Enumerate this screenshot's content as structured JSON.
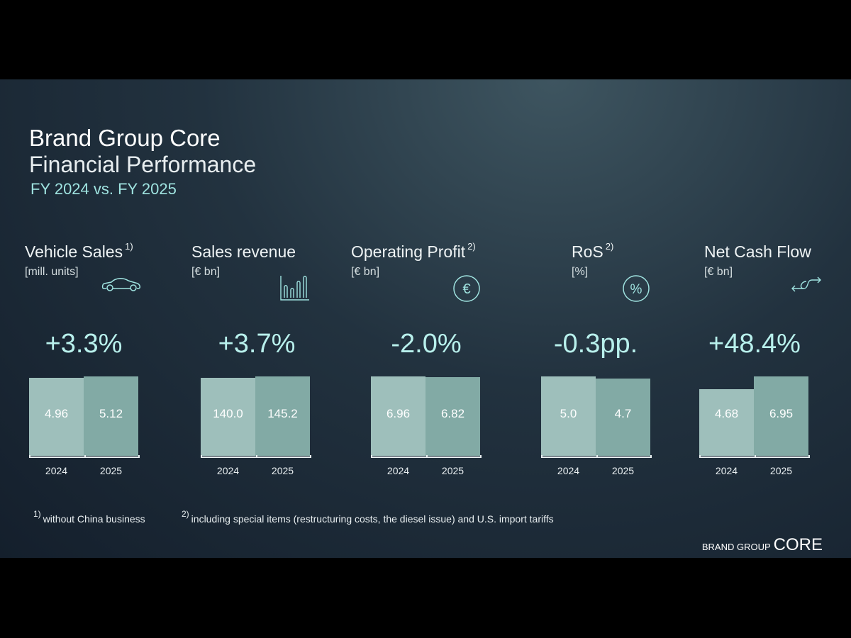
{
  "title": {
    "line1": "Brand Group Core",
    "line2": "Financial Performance",
    "line3": "FY 2024 vs. FY 2025"
  },
  "chart_data": [
    {
      "type": "bar",
      "title": "Vehicle Sales",
      "footnote": "1)",
      "unit": "[mill. units]",
      "icon": "car-icon",
      "delta": "+3.3%",
      "categories": [
        "2024",
        "2025"
      ],
      "values": [
        4.96,
        5.12
      ],
      "labels": [
        "4.96",
        "5.12"
      ]
    },
    {
      "type": "bar",
      "title": "Sales revenue",
      "footnote": "",
      "unit": "[€ bn]",
      "icon": "bar-chart-icon",
      "delta": "+3.7%",
      "categories": [
        "2024",
        "2025"
      ],
      "values": [
        140.0,
        145.2
      ],
      "labels": [
        "140.0",
        "145.2"
      ]
    },
    {
      "type": "bar",
      "title": "Operating Profit",
      "footnote": "2)",
      "unit": "[€ bn]",
      "icon": "euro-icon",
      "delta": "-2.0%",
      "categories": [
        "2024",
        "2025"
      ],
      "values": [
        6.96,
        6.82
      ],
      "labels": [
        "6.96",
        "6.82"
      ]
    },
    {
      "type": "bar",
      "title": "RoS",
      "footnote": "2)",
      "unit": "[%]",
      "icon": "percent-icon",
      "delta": "-0.3pp.",
      "categories": [
        "2024",
        "2025"
      ],
      "values": [
        5.0,
        4.7
      ],
      "labels": [
        "5.0",
        "4.7"
      ]
    },
    {
      "type": "bar",
      "title": "Net Cash Flow",
      "footnote": "",
      "unit": "[€ bn]",
      "icon": "cash-flow-icon",
      "delta": "+48.4%",
      "categories": [
        "2024",
        "2025"
      ],
      "values": [
        4.68,
        6.95
      ],
      "labels": [
        "4.68",
        "6.95"
      ]
    }
  ],
  "footnotes": [
    {
      "mark": "1)",
      "text": "without China business"
    },
    {
      "mark": "2)",
      "text": "including special items (restructuring costs, the diesel issue) and U.S. import tariffs"
    }
  ],
  "logo": {
    "small": "BRAND GROUP",
    "large": "CORE"
  },
  "colors": {
    "bar2024": "#9ebfbb",
    "bar2025": "#82aaa5",
    "accent": "#9fe3e0"
  }
}
